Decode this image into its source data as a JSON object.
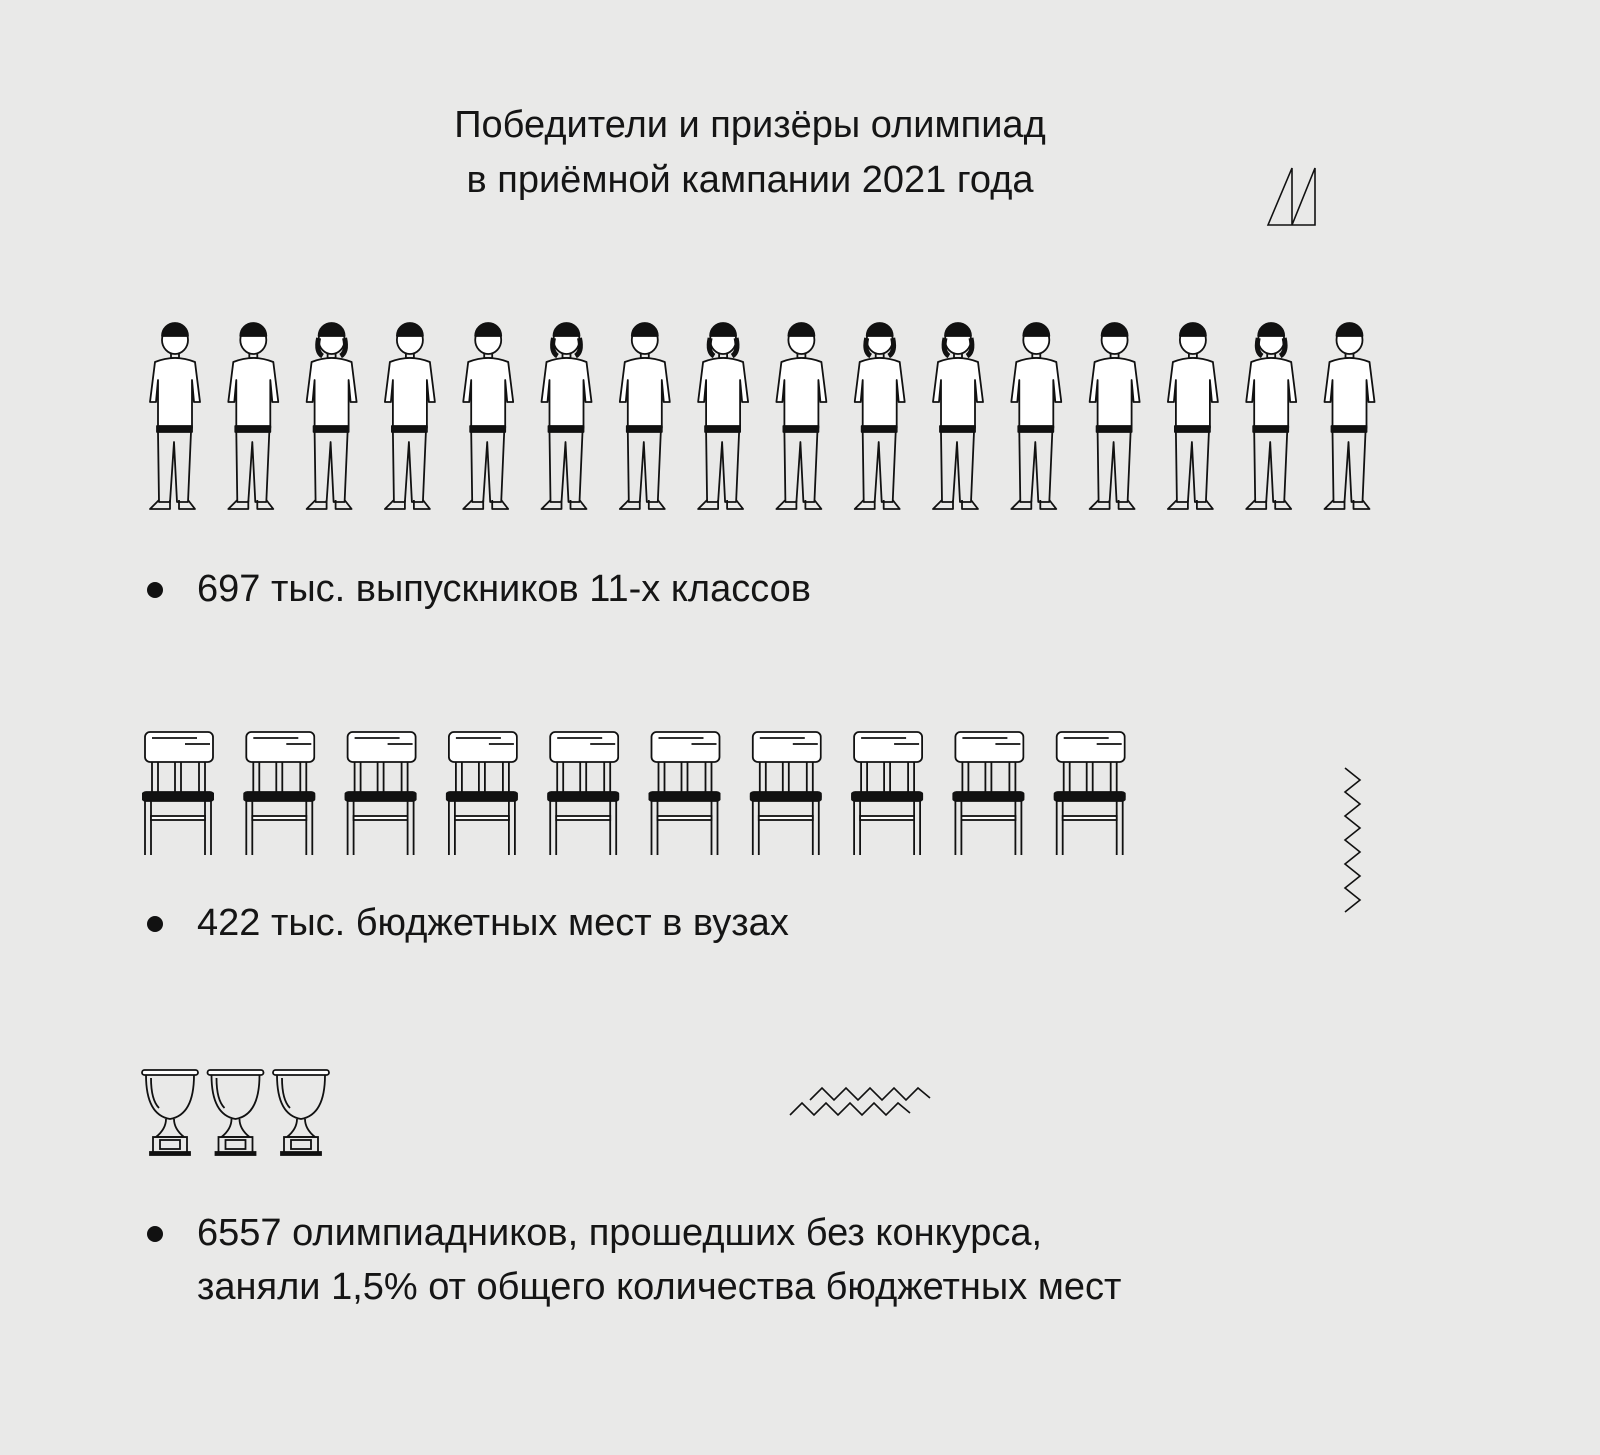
{
  "title": {
    "line1": "Победители и призёры олимпиад",
    "line2": "в приёмной кампании 2021 года"
  },
  "sections": [
    {
      "icon": "student-icon",
      "count": 16,
      "text": "697 тыс. выпускников 11-х классов"
    },
    {
      "icon": "chair-icon",
      "count": 10,
      "text": "422 тыс. бюджетных мест в вузах"
    },
    {
      "icon": "trophy-icon",
      "count": 3,
      "line1": "6557 олимпиадников, прошедших без конкурса,",
      "line2": "заняли 1,5% от общего количества бюджетных мест"
    }
  ],
  "female_figure_indices": [
    2,
    5,
    7,
    9,
    10,
    14
  ],
  "colors": {
    "background": "#e9e9e8",
    "ink": "#111111"
  }
}
